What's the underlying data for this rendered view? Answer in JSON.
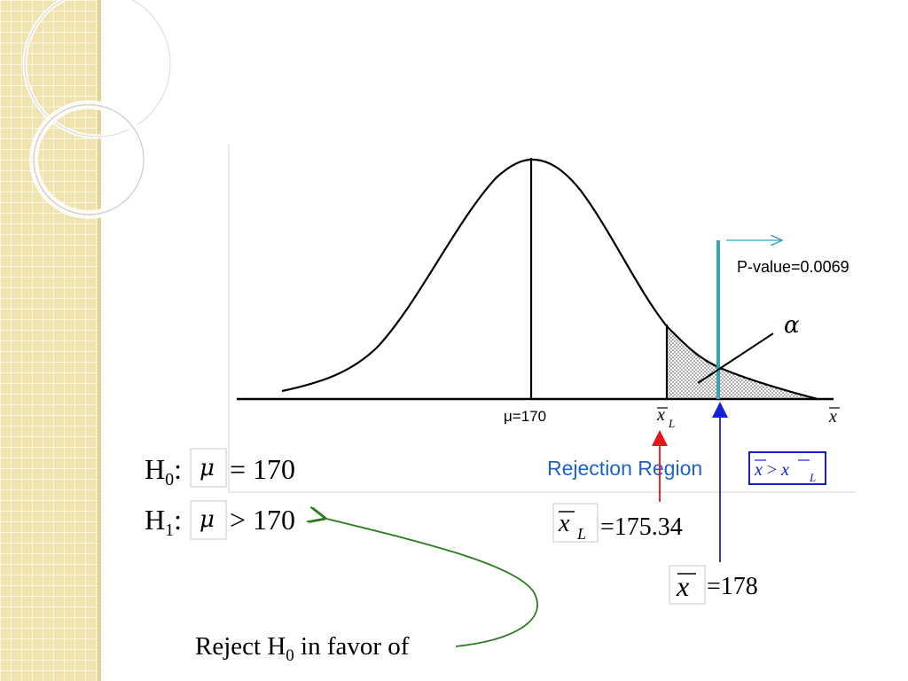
{
  "slide": {
    "mu_axis_label": "μ=170",
    "x_axis_label": "x",
    "xL_axis_label": "x",
    "xL_axis_sub": "L",
    "alpha_label": "α",
    "pvalue_label": "P-value=0.0069",
    "rejection_label": "Rejection Region",
    "rejection_box": {
      "lhs": "x",
      "op": " > ",
      "rhs": "x",
      "rhs_sub": "L"
    },
    "h0": {
      "label": "H",
      "sub": "0",
      "colon": ":",
      "param": "μ",
      "relation": "= 170"
    },
    "h1": {
      "label": "H",
      "sub": "1",
      "colon": ":",
      "param": "μ",
      "relation": "> 170"
    },
    "xL_value": {
      "symbol": "x",
      "sub": "L",
      "value": "=175.34"
    },
    "xbar_value": {
      "symbol": "x",
      "value": "=178"
    },
    "reject_text": {
      "pre": "Reject H",
      "sub": "0",
      "post": " in favor of"
    }
  },
  "colors": {
    "sidebar": "#efe3b0",
    "sidebar_grid": "#ffffff",
    "curve": "#000000",
    "pvalue_line": "#3aa0b6",
    "red_arrow": "#e8141b",
    "blue_arrow": "#1620d6",
    "green_arrow": "#2a7a1e",
    "rejection_text": "#1f63c4",
    "rejection_box": "#1620c8"
  }
}
